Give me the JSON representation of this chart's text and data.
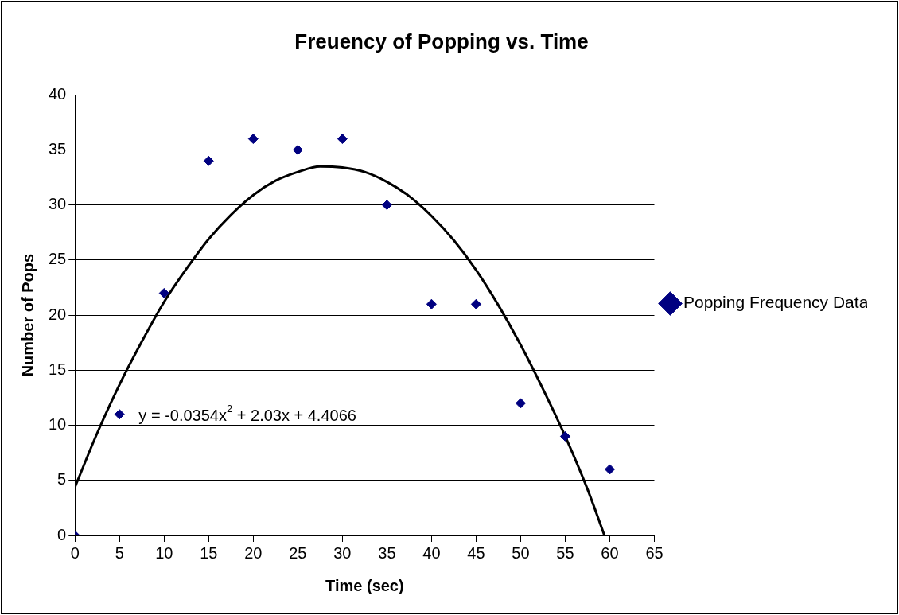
{
  "chart_data": {
    "type": "scatter",
    "title": "Freuency of Popping vs. Time",
    "xlabel": "Time (sec)",
    "ylabel": "Number of Pops",
    "x": [
      0,
      5,
      10,
      15,
      20,
      25,
      30,
      35,
      40,
      45,
      50,
      55,
      60
    ],
    "series": [
      {
        "name": "Popping Frequency Data",
        "color": "#000080",
        "values": [
          0,
          11,
          22,
          34,
          36,
          35,
          36,
          30,
          21,
          21,
          12,
          9,
          6
        ]
      },
      {
        "type": "line",
        "color": "#000000",
        "x": [
          0,
          2.5,
          5,
          7.5,
          10,
          12.5,
          15,
          17.5,
          20,
          22.5,
          25,
          27.5,
          30,
          32.5,
          35,
          37.5,
          40,
          42.5,
          45,
          47.5,
          50,
          52.5,
          55,
          57.5,
          59.4
        ],
        "values": [
          4.4,
          9.3,
          13.7,
          17.6,
          21.2,
          24.2,
          26.9,
          29.1,
          30.9,
          32.2,
          33.0,
          33.5,
          33.4,
          33.0,
          32.1,
          30.8,
          29.0,
          26.8,
          24.1,
          20.9,
          17.3,
          13.3,
          9.0,
          4.2,
          0
        ],
        "marker": "none"
      }
    ],
    "xlim": [
      0,
      65
    ],
    "xticks": [
      0,
      5,
      10,
      15,
      20,
      25,
      30,
      35,
      40,
      45,
      50,
      55,
      60,
      65
    ],
    "ylim": [
      0,
      40
    ],
    "yticks": [
      0,
      5,
      10,
      15,
      20,
      25,
      30,
      35,
      40
    ],
    "grid": "y",
    "legend": "right",
    "marker": "diamond",
    "annotations": [
      "y = -0.0354x$^{2}$ + 2.03x + 4.4066"
    ]
  }
}
